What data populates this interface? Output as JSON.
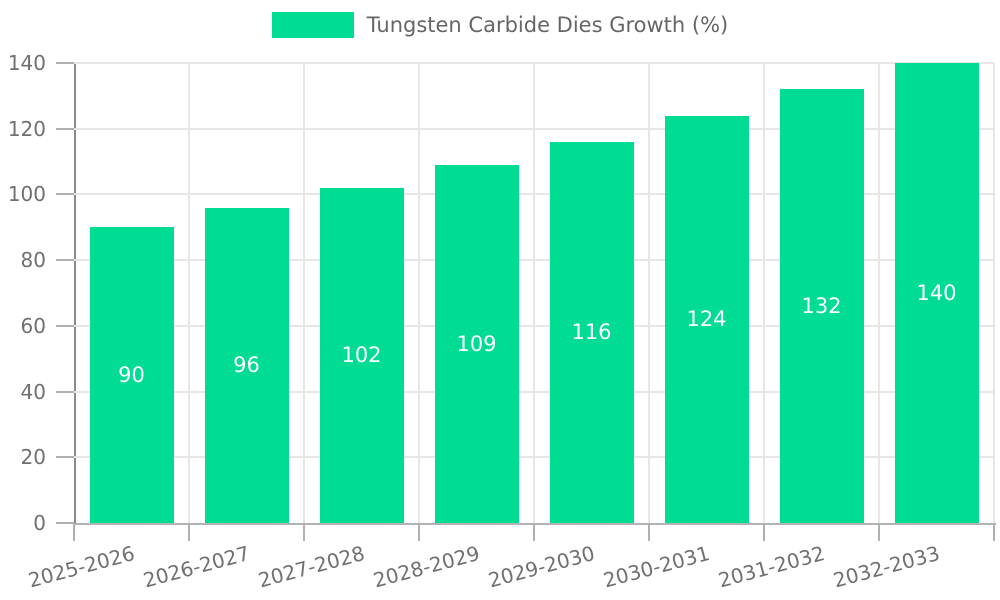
{
  "chart_data": {
    "type": "bar",
    "title": "",
    "xlabel": "",
    "ylabel": "",
    "categories": [
      "2025-2026",
      "2026-2027",
      "2027-2028",
      "2028-2029",
      "2029-2030",
      "2030-2031",
      "2031-2032",
      "2032-2033"
    ],
    "series": [
      {
        "name": "Tungsten Carbide Dies Growth (%)",
        "values": [
          90,
          96,
          102,
          109,
          116,
          124,
          132,
          140
        ]
      }
    ],
    "value_labels": [
      "90",
      "96",
      "102",
      "109",
      "116",
      "124",
      "132",
      "140"
    ],
    "value_label_position": "inside-center",
    "ylim": [
      0,
      140
    ],
    "yticks": [
      0,
      20,
      40,
      60,
      80,
      100,
      120,
      140
    ],
    "grid": true,
    "legend_position": "top-center",
    "legend_swatch": "rect",
    "colors": {
      "bar": "#00DC94",
      "value_label": "#ffffff",
      "axis_text": "#707070",
      "legend_text": "#666666",
      "grid_line": "#e6e6e6",
      "y_axis_line": "#8a8a8a",
      "x_axis_line": "#b3b3b3",
      "tick_mark": "#b0b0b0",
      "background": "#ffffff"
    }
  }
}
